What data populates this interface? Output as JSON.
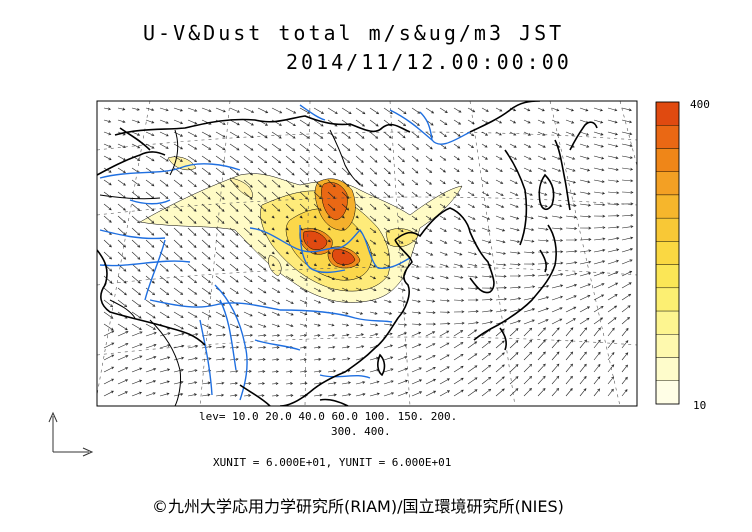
{
  "header": {
    "title": "U-V&Dust total m/s&ug/m3 JST",
    "datetime": "2014/11/12.00:00:00"
  },
  "colorbar": {
    "max_label": "400",
    "min_label": "10",
    "colors": [
      "#E04A10",
      "#EA6814",
      "#EF8618",
      "#F3A024",
      "#F6B62C",
      "#F8C836",
      "#FAD842",
      "#FBE656",
      "#FCEF72",
      "#FDF590",
      "#FEF9AE",
      "#FEFCCB",
      "#FFFEE6"
    ]
  },
  "levels": {
    "line1": "lev= 10.0 20.0 40.0 60.0 100. 150. 200.",
    "line2": "300. 400."
  },
  "units": {
    "text": "XUNIT = 6.000E+01, YUNIT = 6.000E+01"
  },
  "credit": "©九州大学応用力学研究所(RIAM)/国立環境研究所(NIES)",
  "map": {
    "coast_color": "#000000",
    "river_color": "#1F6FE0",
    "grid_color": "#555555"
  }
}
